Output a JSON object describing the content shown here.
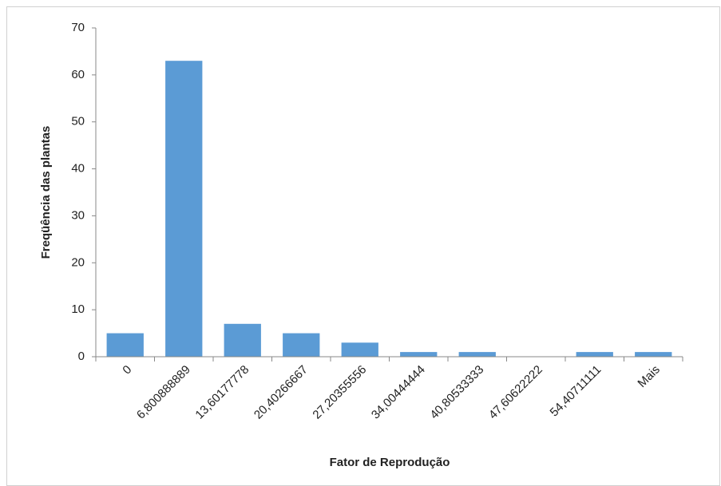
{
  "chart_data": {
    "type": "bar",
    "x_label": "Fator de Reprodução",
    "y_label": "Freqüência das plantas",
    "categories": [
      "0",
      "6,800888889",
      "13,60177778",
      "20,40266667",
      "27,20355556",
      "34,00444444",
      "40,80533333",
      "47,60622222",
      "54,40711111",
      "Mais"
    ],
    "values": [
      5,
      63,
      7,
      5,
      3,
      1,
      1,
      0,
      1,
      1
    ],
    "color": "#5b9bd5",
    "ylim": [
      0,
      70
    ],
    "yticks": [
      0,
      10,
      20,
      30,
      40,
      50,
      60,
      70
    ],
    "grid": false
  }
}
